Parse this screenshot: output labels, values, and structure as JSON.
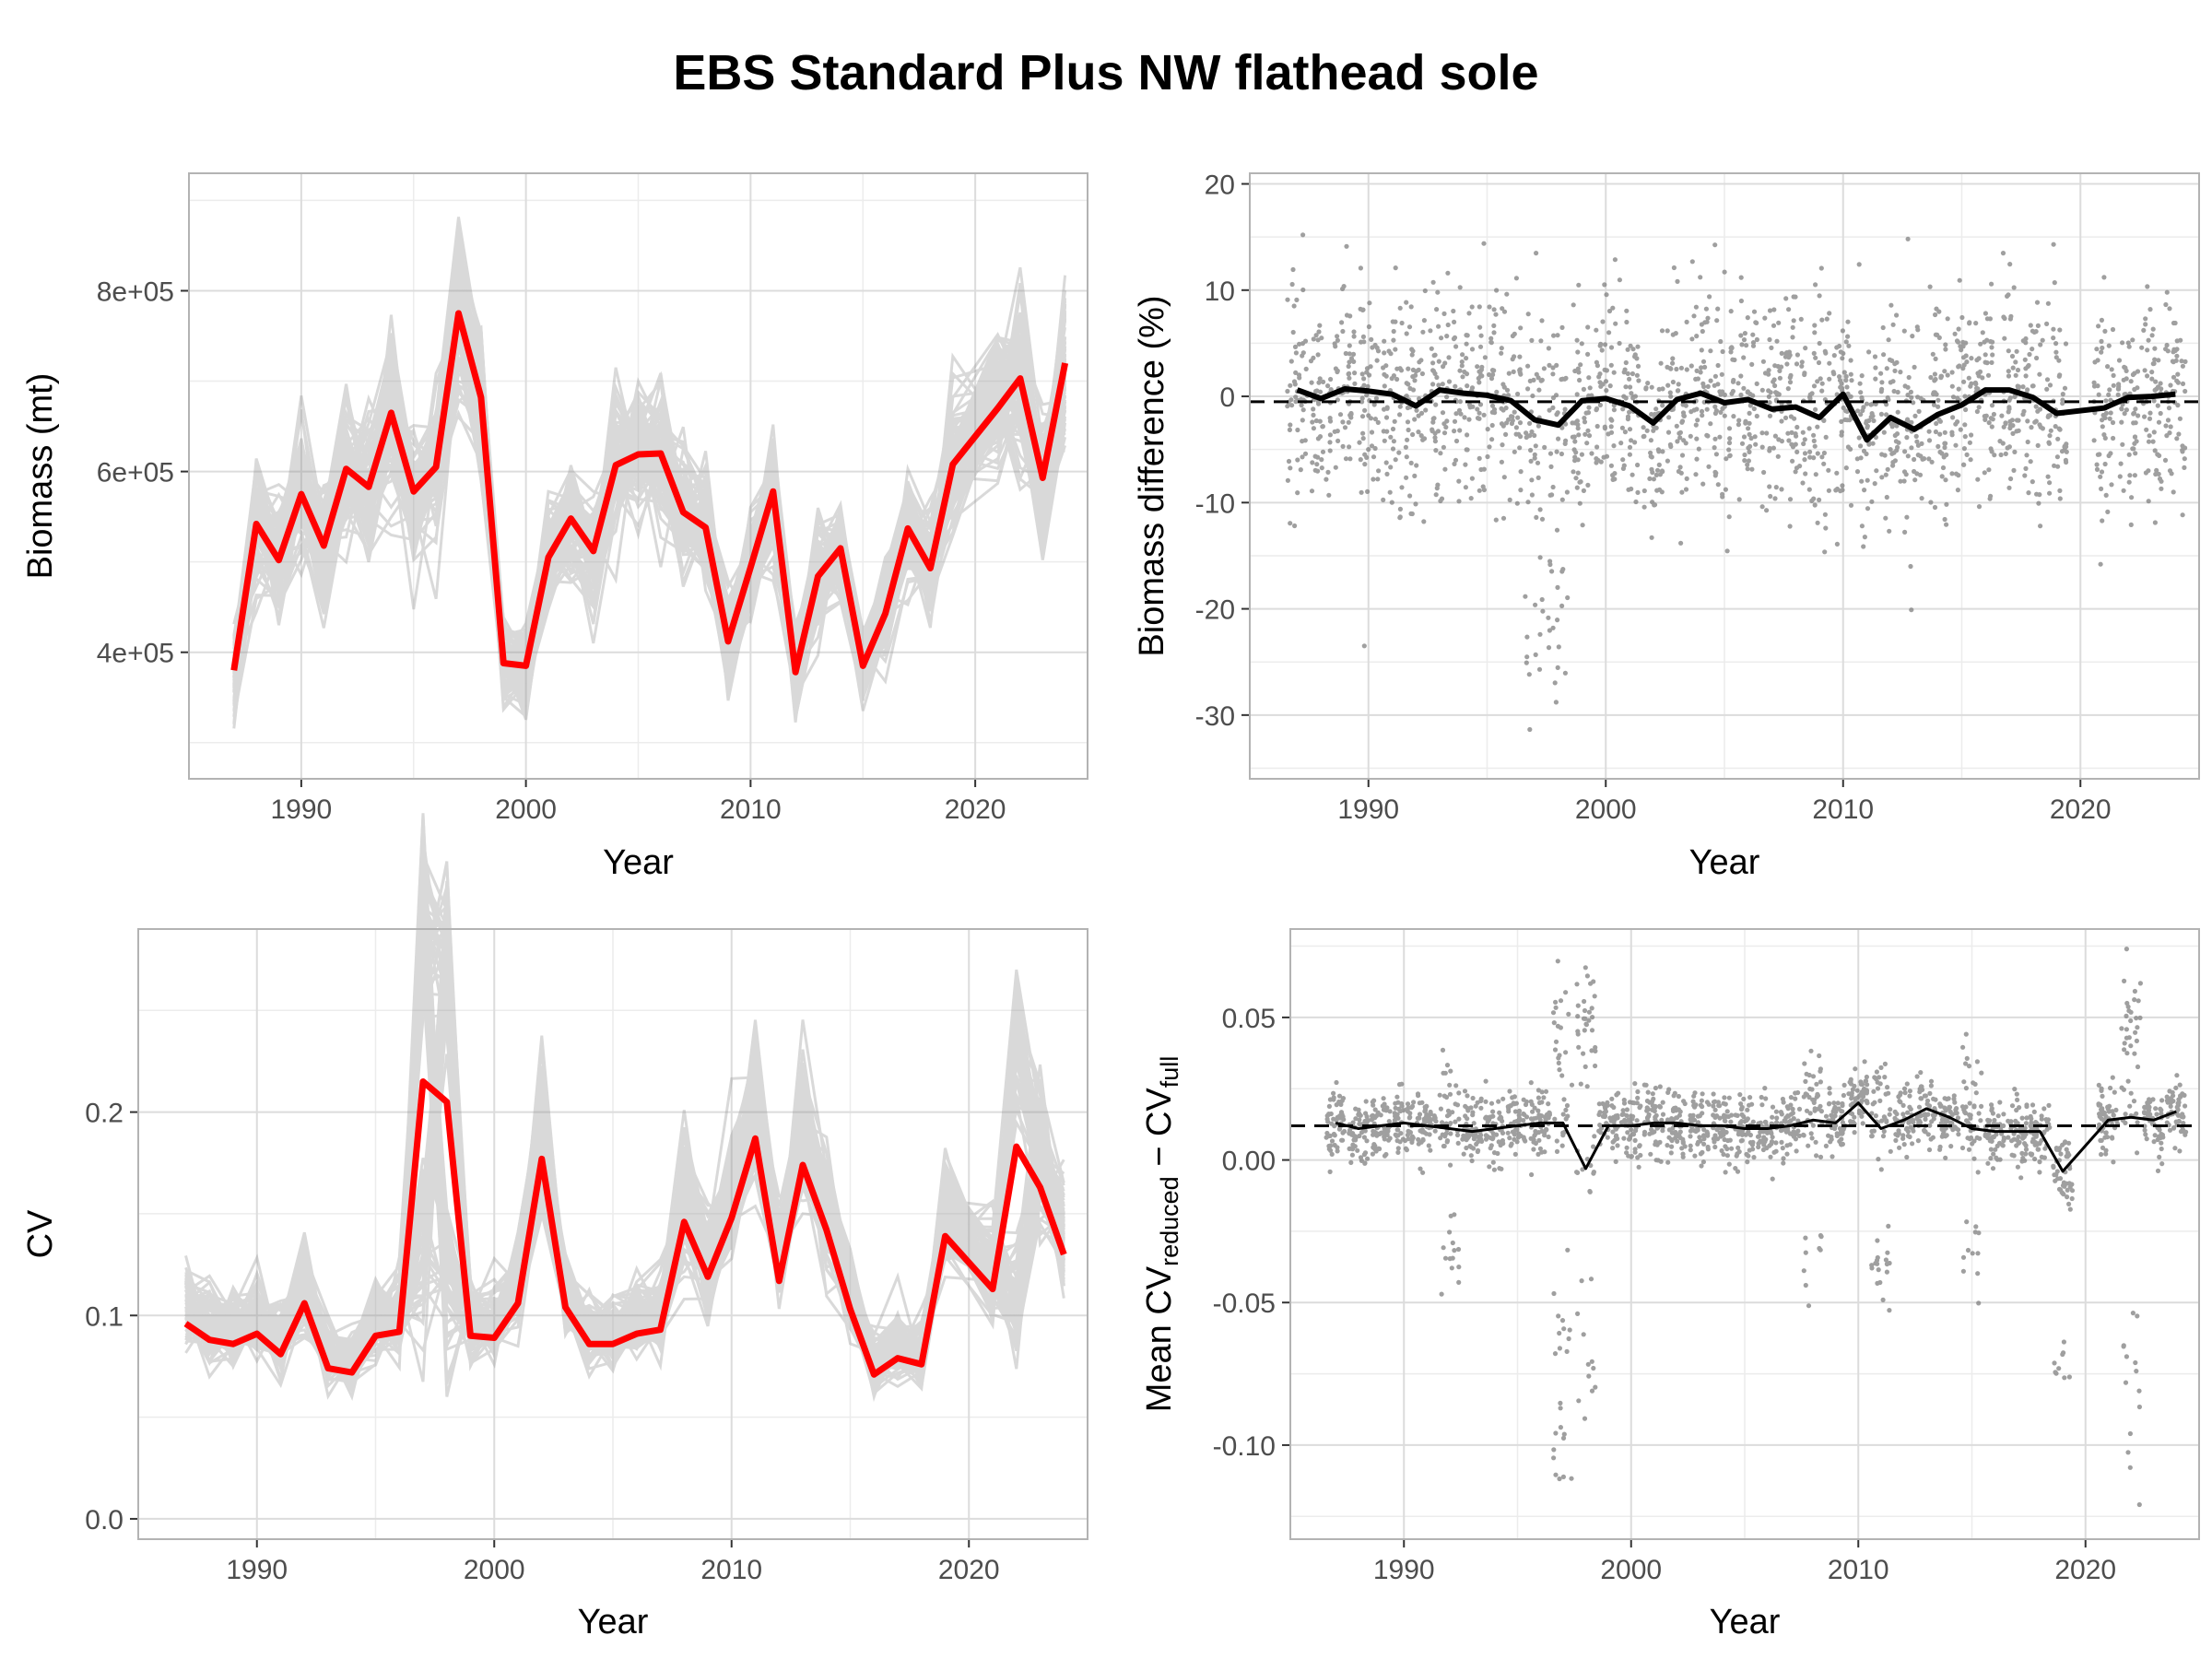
{
  "figure": {
    "title": "EBS Standard Plus NW flathead sole",
    "colors": {
      "highlight": "#ff0000",
      "replicates": "#8c8c8c",
      "mean": "#000000",
      "points": "#808080"
    }
  },
  "chart_data": [
    {
      "type": "line",
      "title": "",
      "xlabel": "Year",
      "ylabel": "Biomass (mt)",
      "xlim": [
        1985,
        2025
      ],
      "ylim": [
        260000,
        930000
      ],
      "xticks": [
        1990,
        2000,
        2010,
        2020
      ],
      "xtick_labels": [
        "1990",
        "2000",
        "2010",
        "2020"
      ],
      "yticks": [
        400000,
        600000,
        800000
      ],
      "ytick_labels": [
        "4e+05",
        "6e+05",
        "8e+05"
      ],
      "grid": true,
      "series": [
        {
          "style": "highlight",
          "x": [
            1987,
            1988,
            1989,
            1990,
            1991,
            1992,
            1993,
            1994,
            1995,
            1996,
            1997,
            1998,
            1999,
            2000,
            2001,
            2002,
            2003,
            2004,
            2005,
            2006,
            2007,
            2008,
            2009,
            2010,
            2011,
            2012,
            2013,
            2014,
            2015,
            2016,
            2017,
            2018,
            2019,
            2021,
            2022,
            2023,
            2024
          ],
          "y": [
            380000,
            542000,
            502000,
            575000,
            518000,
            603000,
            583000,
            665000,
            578000,
            605000,
            775000,
            682000,
            388000,
            385000,
            505000,
            548000,
            512000,
            607000,
            619000,
            620000,
            555000,
            538000,
            412000,
            494000,
            578000,
            378000,
            484000,
            515000,
            385000,
            443000,
            537000,
            493000,
            608000,
            670000,
            703000,
            593000,
            720000
          ]
        }
      ],
      "replicates": {
        "count": 100,
        "description": ""
      }
    },
    {
      "type": "scatter",
      "title": "",
      "xlabel": "Year",
      "ylabel": "Biomass difference (%)",
      "xlim": [
        1985,
        2025
      ],
      "ylim": [
        -36,
        21
      ],
      "xticks": [
        1990,
        2000,
        2010,
        2020
      ],
      "xtick_labels": [
        "1990",
        "2000",
        "2010",
        "2020"
      ],
      "yticks": [
        -30,
        -20,
        -10,
        0,
        10,
        20
      ],
      "ytick_labels": [
        "-30",
        "-20",
        "-10",
        "0",
        "10",
        "20"
      ],
      "reference_line": -0.5,
      "grid": true,
      "mean_series": {
        "x": [
          1987,
          1988,
          1989,
          1990,
          1991,
          1992,
          1993,
          1994,
          1995,
          1996,
          1997,
          1998,
          1999,
          2000,
          2001,
          2002,
          2003,
          2004,
          2005,
          2006,
          2007,
          2008,
          2009,
          2010,
          2011,
          2012,
          2013,
          2014,
          2015,
          2016,
          2017,
          2018,
          2019,
          2021,
          2022,
          2023,
          2024
        ],
        "y": [
          0.6,
          -0.2,
          0.7,
          0.5,
          0.2,
          -0.9,
          0.6,
          0.3,
          0.1,
          -0.4,
          -2.2,
          -2.7,
          -0.4,
          -0.2,
          -0.9,
          -2.5,
          -0.3,
          0.3,
          -0.6,
          -0.3,
          -1.2,
          -1.0,
          -2.0,
          0.2,
          -4.1,
          -2.0,
          -3.1,
          -1.7,
          -0.8,
          0.6,
          0.6,
          -0.1,
          -1.6,
          -1.1,
          -0.1,
          0.0,
          0.2
        ]
      }
    },
    {
      "type": "line",
      "title": "",
      "xlabel": "Year",
      "ylabel": "CV",
      "xlim": [
        1985,
        2025
      ],
      "ylim": [
        -0.01,
        0.29
      ],
      "xticks": [
        1990,
        2000,
        2010,
        2020
      ],
      "xtick_labels": [
        "1990",
        "2000",
        "2010",
        "2020"
      ],
      "yticks": [
        0.0,
        0.1,
        0.2
      ],
      "ytick_labels": [
        "0.0",
        "0.1",
        "0.2"
      ],
      "grid": true,
      "series": [
        {
          "style": "highlight",
          "x": [
            1987,
            1988,
            1989,
            1990,
            1991,
            1992,
            1993,
            1994,
            1995,
            1996,
            1997,
            1998,
            1999,
            2000,
            2001,
            2002,
            2003,
            2004,
            2005,
            2006,
            2007,
            2008,
            2009,
            2010,
            2011,
            2012,
            2013,
            2014,
            2015,
            2016,
            2017,
            2018,
            2019,
            2021,
            2022,
            2023,
            2024
          ],
          "y": [
            0.096,
            0.088,
            0.086,
            0.091,
            0.081,
            0.106,
            0.074,
            0.072,
            0.09,
            0.092,
            0.215,
            0.205,
            0.09,
            0.089,
            0.106,
            0.177,
            0.104,
            0.086,
            0.086,
            0.091,
            0.093,
            0.146,
            0.119,
            0.148,
            0.187,
            0.117,
            0.174,
            0.142,
            0.103,
            0.071,
            0.079,
            0.076,
            0.139,
            0.113,
            0.183,
            0.163,
            0.13
          ]
        }
      ],
      "replicates": {
        "count": 100,
        "description": ""
      }
    },
    {
      "type": "scatter",
      "title": "",
      "xlabel": "Year",
      "ylabel": "Mean CVreduced − CVfull",
      "ylabel_parts": {
        "prefix": "Mean CV",
        "sub1": "reduced",
        "minus": " − CV",
        "sub2": "full"
      },
      "xlim": [
        1985,
        2025
      ],
      "ylim": [
        -0.133,
        0.081
      ],
      "xticks": [
        1990,
        2000,
        2010,
        2020
      ],
      "xtick_labels": [
        "1990",
        "2000",
        "2010",
        "2020"
      ],
      "yticks": [
        -0.1,
        -0.05,
        0.0,
        0.05
      ],
      "ytick_labels": [
        "-0.10",
        "-0.05",
        "0.00",
        "0.05"
      ],
      "reference_line": 0.012,
      "grid": true,
      "mean_series": {
        "x": [
          1987,
          1988,
          1989,
          1990,
          1991,
          1992,
          1993,
          1994,
          1995,
          1996,
          1997,
          1998,
          1999,
          2000,
          2001,
          2002,
          2003,
          2004,
          2005,
          2006,
          2007,
          2008,
          2009,
          2010,
          2011,
          2012,
          2013,
          2014,
          2015,
          2016,
          2017,
          2018,
          2019,
          2021,
          2022,
          2023,
          2024
        ],
        "y": [
          0.013,
          0.011,
          0.012,
          0.013,
          0.012,
          0.011,
          0.01,
          0.011,
          0.012,
          0.013,
          0.013,
          -0.003,
          0.012,
          0.012,
          0.013,
          0.013,
          0.012,
          0.012,
          0.011,
          0.011,
          0.012,
          0.014,
          0.013,
          0.02,
          0.011,
          0.014,
          0.018,
          0.015,
          0.011,
          0.01,
          0.01,
          0.01,
          -0.004,
          0.014,
          0.015,
          0.014,
          0.017
        ]
      }
    }
  ]
}
